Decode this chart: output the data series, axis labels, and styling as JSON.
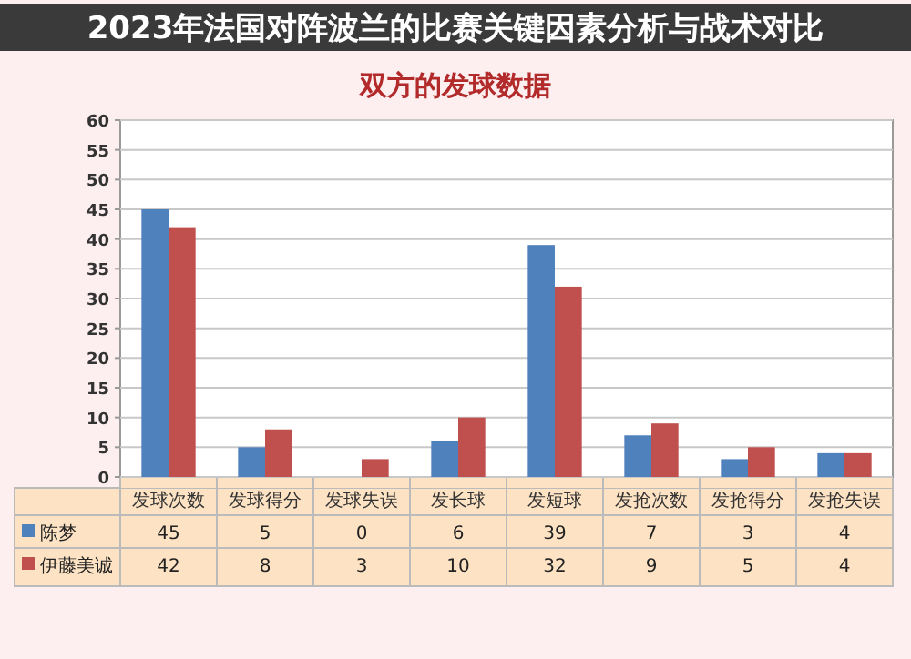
{
  "chart_data": {
    "type": "bar",
    "title": "双方的发球数据",
    "annotations": [
      "2023年法国对阵波兰的比赛关键因素分析与战术对比"
    ],
    "categories": [
      "发球次数",
      "发球得分",
      "发球失误",
      "发长球",
      "发短球",
      "发抢次数",
      "发抢得分",
      "发抢失误"
    ],
    "series": [
      {
        "name": "陈梦",
        "color": "#4f81bd",
        "values": [
          45,
          5,
          0,
          6,
          39,
          7,
          3,
          4
        ]
      },
      {
        "name": "伊藤美诚",
        "color": "#c0504d",
        "values": [
          42,
          8,
          3,
          10,
          32,
          9,
          5,
          4
        ]
      }
    ],
    "ylim": [
      0,
      60
    ],
    "yticks": [
      0,
      5,
      10,
      15,
      20,
      25,
      30,
      35,
      40,
      45,
      50,
      55,
      60
    ],
    "grid": "y",
    "legend": "left",
    "data_labels": true
  }
}
